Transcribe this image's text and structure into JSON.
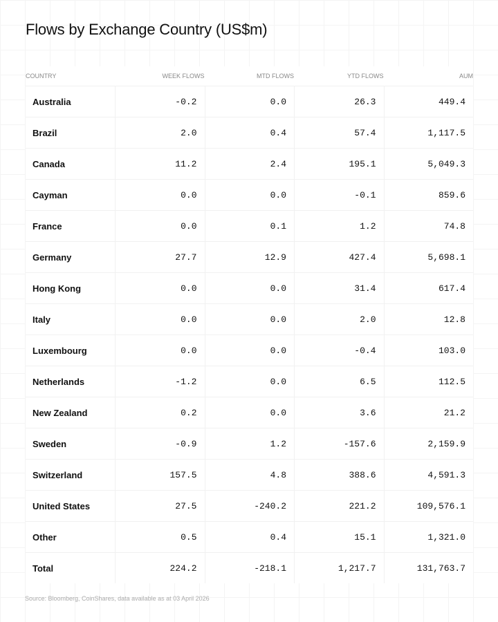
{
  "chart_data": {
    "type": "table",
    "title": "Flows by Exchange Country (US$m)",
    "columns": [
      "COUNTRY",
      "WEEK FLOWS",
      "MTD FLOWS",
      "YTD FLOWS",
      "AUM"
    ],
    "rows": [
      [
        "Australia",
        "-0.2",
        "0.0",
        "26.3",
        "449.4"
      ],
      [
        "Brazil",
        "2.0",
        "0.4",
        "57.4",
        "1,117.5"
      ],
      [
        "Canada",
        "11.2",
        "2.4",
        "195.1",
        "5,049.3"
      ],
      [
        "Cayman",
        "0.0",
        "0.0",
        "-0.1",
        "859.6"
      ],
      [
        "France",
        "0.0",
        "0.1",
        "1.2",
        "74.8"
      ],
      [
        "Germany",
        "27.7",
        "12.9",
        "427.4",
        "5,698.1"
      ],
      [
        "Hong Kong",
        "0.0",
        "0.0",
        "31.4",
        "617.4"
      ],
      [
        "Italy",
        "0.0",
        "0.0",
        "2.0",
        "12.8"
      ],
      [
        "Luxembourg",
        "0.0",
        "0.0",
        "-0.4",
        "103.0"
      ],
      [
        "Netherlands",
        "-1.2",
        "0.0",
        "6.5",
        "112.5"
      ],
      [
        "New Zealand",
        "0.2",
        "0.0",
        "3.6",
        "21.2"
      ],
      [
        "Sweden",
        "-0.9",
        "1.2",
        "-157.6",
        "2,159.9"
      ],
      [
        "Switzerland",
        "157.5",
        "4.8",
        "388.6",
        "4,591.3"
      ],
      [
        "United States",
        "27.5",
        "-240.2",
        "221.2",
        "109,576.1"
      ],
      [
        "Other",
        "0.5",
        "0.4",
        "15.1",
        "1,321.0"
      ],
      [
        "Total",
        "224.2",
        "-218.1",
        "1,217.7",
        "131,763.7"
      ]
    ],
    "source": "Source: Bloomberg, CoinShares, data available as at 03 April 2026"
  }
}
